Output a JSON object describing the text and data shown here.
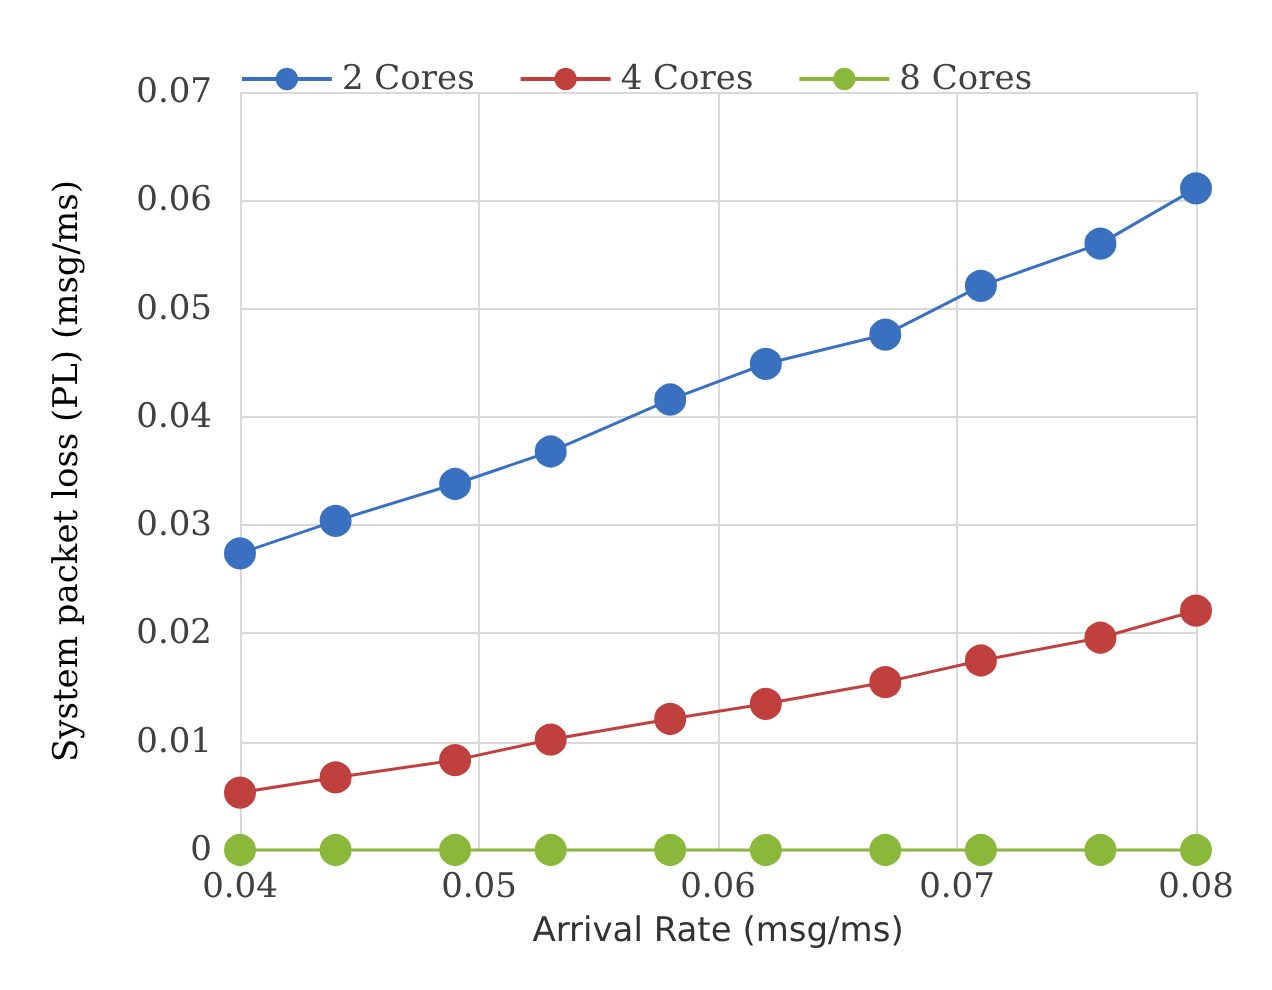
{
  "chart_data": {
    "type": "line",
    "xlabel": "Arrival Rate (msg/ms)",
    "ylabel": "System packet loss (PL) (msg/ms)",
    "x": [
      0.04,
      0.044,
      0.049,
      0.053,
      0.058,
      0.062,
      0.067,
      0.071,
      0.076,
      0.08
    ],
    "series": [
      {
        "name": "2 Cores",
        "color": "#3a70c0",
        "values": [
          0.0274,
          0.0304,
          0.0338,
          0.0368,
          0.0416,
          0.0449,
          0.0476,
          0.0521,
          0.056,
          0.0611
        ]
      },
      {
        "name": "4 Cores",
        "color": "#c0403d",
        "values": [
          0.0053,
          0.0067,
          0.0083,
          0.0102,
          0.0121,
          0.0135,
          0.0155,
          0.0175,
          0.0196,
          0.0221
        ]
      },
      {
        "name": "8 Cores",
        "color": "#8ab83a",
        "values": [
          0,
          0,
          0,
          0,
          0,
          0,
          0,
          0,
          0,
          0
        ]
      }
    ],
    "xlim": [
      0.04,
      0.08
    ],
    "xticks": [
      0.04,
      0.05,
      0.06,
      0.07,
      0.08
    ],
    "ylim": [
      0,
      0.07
    ],
    "yticks": [
      0,
      0.01,
      0.02,
      0.03,
      0.04,
      0.05,
      0.06,
      0.07
    ],
    "grid": true,
    "legend": "top",
    "marker": "circle",
    "line_style": "solid"
  }
}
